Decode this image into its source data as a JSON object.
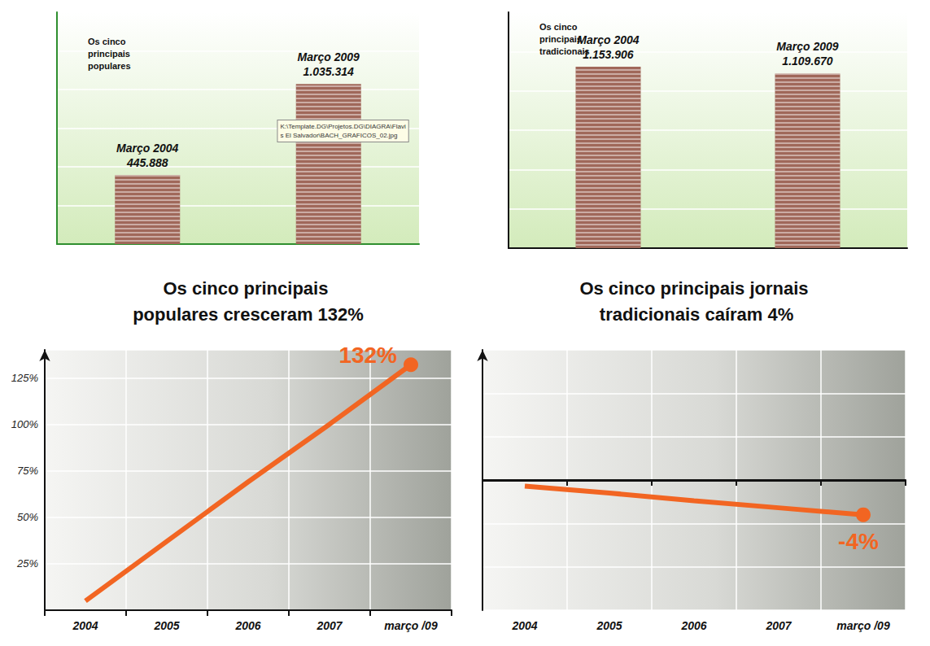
{
  "chart_data": [
    {
      "type": "bar",
      "title": "Os cinco principais populares",
      "categories": [
        "Março 2004",
        "Março 2009"
      ],
      "values": [
        445888,
        1035314
      ],
      "value_labels": [
        "445.888",
        "1.035.314"
      ],
      "color": "#a0685a",
      "ylim": [
        0,
        1500000
      ],
      "yticks": [
        0,
        250000,
        500000,
        750000,
        1000000,
        1250000,
        1500000
      ],
      "grid": true,
      "tick_labels": false,
      "data_labels": true,
      "annotations": [
        {
          "text": "K:\\Template.DG\\Projetos.DG\\DIAGRA\\Flavi\ns El Salvador\\BACH_GRAFICOS_02.jpg"
        }
      ]
    },
    {
      "type": "bar",
      "title": "Os cinco principais tradicionais",
      "categories": [
        "Março 2004",
        "Março 2009"
      ],
      "values": [
        1153906,
        1109670
      ],
      "value_labels": [
        "1.153.906",
        "1.109.670"
      ],
      "color": "#a0685a",
      "ylim": [
        0,
        1500000
      ],
      "yticks": [
        0,
        250000,
        500000,
        750000,
        1000000,
        1250000,
        1500000
      ],
      "grid": true,
      "tick_labels": false,
      "data_labels": true
    },
    {
      "type": "line",
      "title": "Os cinco principais populares cresceram 132%",
      "categories": [
        "2004",
        "2005",
        "2006",
        "2007",
        "março /09"
      ],
      "values": [
        5,
        37,
        69,
        100,
        132
      ],
      "color": "#f26522",
      "marker": "circle",
      "ylim": [
        0,
        140
      ],
      "yticks": [
        {
          "value": 25,
          "label": "25%"
        },
        {
          "value": 50,
          "label": "50%"
        },
        {
          "value": 75,
          "label": "75%"
        },
        {
          "value": 100,
          "label": "100%"
        },
        {
          "value": 125,
          "label": "125%"
        }
      ],
      "grid": true,
      "annotations": [
        {
          "text": "132%",
          "x": "março /09"
        }
      ]
    },
    {
      "type": "line",
      "title": "Os cinco principais jornais tradicionais caíram 4%",
      "categories": [
        "2004",
        "2005",
        "2006",
        "2007",
        "março /09"
      ],
      "values": [
        -0.7,
        -1.5,
        -2.4,
        -3.2,
        -4
      ],
      "color": "#f26522",
      "marker": "circle",
      "ylim": [
        -15,
        15
      ],
      "yticks": [
        -15,
        -10,
        -5,
        0,
        5,
        10,
        15
      ],
      "grid": true,
      "tick_labels": "x",
      "annotations": [
        {
          "text": "-4%",
          "x": "março /09"
        }
      ]
    }
  ]
}
